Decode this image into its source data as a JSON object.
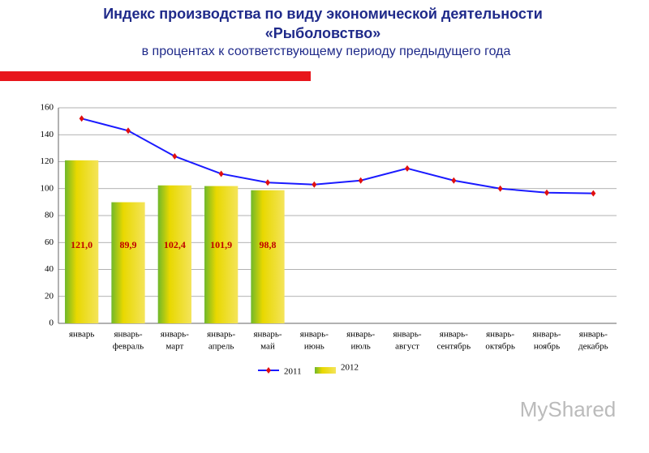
{
  "chart_data": {
    "type": "bar-line",
    "title": [
      "Индекс производства по виду экономической деятельности",
      "«Рыболовство»"
    ],
    "subtitle": "в процентах к соответствующему периоду предыдущего года",
    "categories": [
      [
        "январь"
      ],
      [
        "январь-",
        "февраль"
      ],
      [
        "январь-",
        "март"
      ],
      [
        "январь-",
        "апрель"
      ],
      [
        "январь-",
        "май"
      ],
      [
        "январь-",
        "июнь"
      ],
      [
        "январь-",
        "июль"
      ],
      [
        "январь-",
        "август"
      ],
      [
        "январь-",
        "сентябрь"
      ],
      [
        "январь-",
        "октябрь"
      ],
      [
        "январь-",
        "ноябрь"
      ],
      [
        "январь-",
        "декабрь"
      ]
    ],
    "series": [
      {
        "name": "2011",
        "kind": "line",
        "color": "#1a1aff",
        "marker_color": "#e01010",
        "values": [
          152,
          143,
          124,
          111,
          104.5,
          103,
          106,
          115,
          106,
          100,
          97,
          96.5
        ]
      },
      {
        "name": "2012",
        "kind": "bar",
        "color": "#e8d800",
        "values": [
          121.0,
          89.9,
          102.4,
          101.9,
          98.8,
          null,
          null,
          null,
          null,
          null,
          null,
          null
        ],
        "value_labels": [
          "121,0",
          "89,9",
          "102,4",
          "101,9",
          "98,8",
          null,
          null,
          null,
          null,
          null,
          null,
          null
        ]
      }
    ],
    "ylim": [
      0,
      160
    ],
    "yticks": [
      0,
      20,
      40,
      60,
      80,
      100,
      120,
      140,
      160
    ],
    "grid": true,
    "watermark": "MyShared"
  }
}
